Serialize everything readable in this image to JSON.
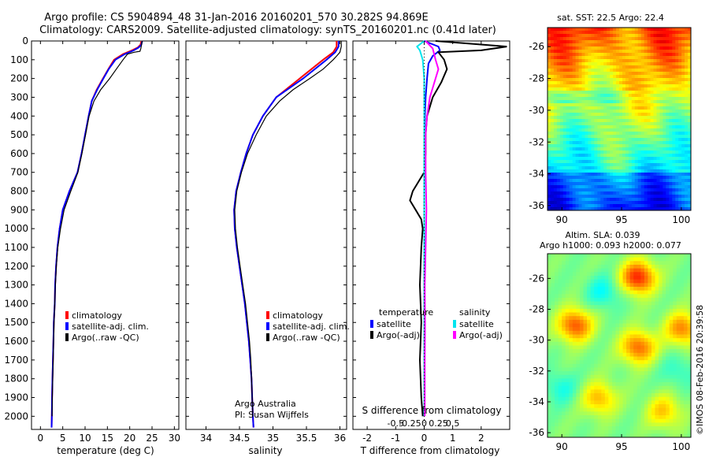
{
  "header": {
    "title_line1": "Argo profile: CS 5904894_48 31-Jan-2016 20160201_570 30.282S 94.869E",
    "title_line2": "Climatology: CARS2009. Satellite-adjusted climatology: synTS_20160201.nc (0.41d later)"
  },
  "colors": {
    "climatology": "#ff0000",
    "satellite": "#0000ff",
    "argo": "#000000",
    "sat_sal": "#00e5ee",
    "argo_sal": "#ff00ff"
  },
  "credits": {
    "org": "Argo Australia",
    "pi": "PI: Susan Wijffels",
    "stamp": "©IMOS 08-Feb-2016 20:39:58"
  },
  "depth_ticks": [
    0,
    100,
    200,
    300,
    400,
    500,
    600,
    700,
    800,
    900,
    1000,
    1100,
    1200,
    1300,
    1400,
    1500,
    1600,
    1700,
    1800,
    1900,
    2000
  ],
  "temp_panel": {
    "xlabel": "temperature (deg C)",
    "xlim": [
      -2,
      31
    ],
    "xticks": [
      0,
      5,
      10,
      15,
      20,
      25,
      30
    ],
    "legend": [
      "climatology",
      "satellite-adj. clim.",
      "Argo(..raw -QC)"
    ]
  },
  "sal_panel": {
    "xlabel": "salinity",
    "xlim": [
      33.7,
      36.1
    ],
    "xticks": [
      34,
      34.5,
      35,
      35.5,
      36
    ],
    "legend": [
      "climatology",
      "satellite-adj. clim.",
      "Argo(..raw -QC)"
    ]
  },
  "diff_panel": {
    "xlabel": "T difference from climatology",
    "xlabel_top": "S difference from climatology",
    "xlim": [
      -2.5,
      3.0
    ],
    "xticks": [
      -2,
      -1,
      0,
      1,
      2
    ],
    "sticks": [
      "-0.5",
      "-0.25",
      "0",
      "0.25",
      "0.5"
    ],
    "legend_t_title": "temperature",
    "legend_s_title": "salinity",
    "legend_t": [
      "satellite",
      "Argo(-adj)"
    ],
    "legend_s": [
      "satellite",
      "Argo(-adj)"
    ]
  },
  "sst_map": {
    "title": "sat. SST: 22.5 Argo: 22.4",
    "xticks": [
      90,
      95,
      100
    ],
    "yticks": [
      -26,
      -28,
      -30,
      -32,
      -34,
      -36
    ],
    "lon": [
      88.8,
      100.8
    ],
    "lat": [
      -24.8,
      -36.3
    ]
  },
  "sla_map": {
    "title1": "Altim. SLA: 0.039",
    "title2": "Argo h1000: 0.093 h2000: 0.077",
    "xticks": [
      90,
      95,
      100
    ],
    "yticks": [
      -26,
      -28,
      -30,
      -32,
      -34,
      -36
    ],
    "lon": [
      88.8,
      100.8
    ],
    "lat": [
      -24.4,
      -36.3
    ]
  },
  "chart_data": [
    {
      "type": "line",
      "ylabel": "",
      "xlabel": "temperature (deg C)",
      "y_inverted": true,
      "ylim": [
        0,
        2070
      ],
      "xlim": [
        -2,
        31
      ],
      "series": [
        {
          "name": "climatology",
          "color": "#ff0000",
          "points": [
            [
              22.6,
              0
            ],
            [
              22.4,
              20
            ],
            [
              21.8,
              35
            ],
            [
              20.5,
              50
            ],
            [
              18.5,
              70
            ],
            [
              16.5,
              100
            ],
            [
              15.2,
              150
            ],
            [
              14.0,
              200
            ],
            [
              12.6,
              260
            ],
            [
              11.5,
              320
            ],
            [
              10.8,
              400
            ],
            [
              10.0,
              500
            ],
            [
              9.2,
              600
            ],
            [
              8.3,
              700
            ],
            [
              6.5,
              800
            ],
            [
              5.0,
              900
            ],
            [
              4.3,
              1000
            ],
            [
              3.8,
              1100
            ],
            [
              3.5,
              1200
            ],
            [
              3.3,
              1300
            ],
            [
              3.2,
              1400
            ],
            [
              3.0,
              1500
            ],
            [
              2.9,
              1600
            ],
            [
              2.8,
              1700
            ],
            [
              2.7,
              1800
            ],
            [
              2.6,
              1900
            ],
            [
              2.55,
              2000
            ],
            [
              2.5,
              2060
            ]
          ]
        },
        {
          "name": "satellite-adj. clim.",
          "color": "#0000ff",
          "points": [
            [
              22.8,
              0
            ],
            [
              22.6,
              20
            ],
            [
              22.0,
              35
            ],
            [
              20.9,
              50
            ],
            [
              18.9,
              70
            ],
            [
              16.8,
              100
            ],
            [
              15.3,
              150
            ],
            [
              14.1,
              200
            ],
            [
              12.7,
              260
            ],
            [
              11.5,
              320
            ],
            [
              10.8,
              400
            ],
            [
              10.0,
              500
            ],
            [
              9.2,
              600
            ],
            [
              8.3,
              700
            ],
            [
              6.5,
              800
            ],
            [
              5.0,
              900
            ],
            [
              4.3,
              1000
            ],
            [
              3.8,
              1100
            ],
            [
              3.5,
              1200
            ],
            [
              3.3,
              1300
            ],
            [
              3.2,
              1400
            ],
            [
              3.0,
              1500
            ],
            [
              2.9,
              1600
            ],
            [
              2.8,
              1700
            ],
            [
              2.7,
              1800
            ],
            [
              2.6,
              1900
            ],
            [
              2.55,
              2000
            ],
            [
              2.5,
              2060
            ]
          ]
        },
        {
          "name": "Argo(..raw -QC)",
          "color": "#000000",
          "points": [
            [
              22.8,
              0
            ],
            [
              22.5,
              40
            ],
            [
              22.3,
              55
            ],
            [
              21.0,
              60
            ],
            [
              19.5,
              70
            ],
            [
              18.5,
              100
            ],
            [
              17.0,
              150
            ],
            [
              15.5,
              200
            ],
            [
              13.5,
              260
            ],
            [
              12.0,
              320
            ],
            [
              10.9,
              400
            ],
            [
              10.1,
              500
            ],
            [
              9.3,
              600
            ],
            [
              8.4,
              700
            ],
            [
              6.8,
              800
            ],
            [
              5.3,
              900
            ],
            [
              4.5,
              1000
            ],
            [
              3.9,
              1100
            ],
            [
              3.55,
              1200
            ],
            [
              3.35,
              1300
            ],
            [
              3.2,
              1400
            ],
            [
              3.05,
              1500
            ],
            [
              2.95,
              1600
            ],
            [
              2.85,
              1700
            ],
            [
              2.75,
              1800
            ],
            [
              2.65,
              1900
            ],
            [
              2.6,
              2000
            ]
          ]
        }
      ]
    },
    {
      "type": "line",
      "xlabel": "salinity",
      "y_inverted": true,
      "ylim": [
        0,
        2070
      ],
      "xlim": [
        33.7,
        36.1
      ],
      "series": [
        {
          "name": "climatology",
          "color": "#ff0000",
          "points": [
            [
              35.95,
              0
            ],
            [
              35.95,
              30
            ],
            [
              35.9,
              60
            ],
            [
              35.75,
              100
            ],
            [
              35.4,
              200
            ],
            [
              35.05,
              300
            ],
            [
              34.85,
              400
            ],
            [
              34.7,
              500
            ],
            [
              34.6,
              600
            ],
            [
              34.52,
              700
            ],
            [
              34.45,
              800
            ],
            [
              34.42,
              900
            ],
            [
              34.43,
              1000
            ],
            [
              34.46,
              1100
            ],
            [
              34.5,
              1200
            ],
            [
              34.54,
              1300
            ],
            [
              34.58,
              1400
            ],
            [
              34.61,
              1500
            ],
            [
              34.64,
              1600
            ],
            [
              34.66,
              1700
            ],
            [
              34.68,
              1800
            ],
            [
              34.69,
              1900
            ],
            [
              34.7,
              2000
            ],
            [
              34.71,
              2060
            ]
          ]
        },
        {
          "name": "satellite-adj. clim.",
          "color": "#0000ff",
          "points": [
            [
              35.98,
              0
            ],
            [
              35.98,
              30
            ],
            [
              35.93,
              60
            ],
            [
              35.8,
              100
            ],
            [
              35.45,
              200
            ],
            [
              35.05,
              300
            ],
            [
              34.85,
              400
            ],
            [
              34.7,
              500
            ],
            [
              34.6,
              600
            ],
            [
              34.52,
              700
            ],
            [
              34.45,
              800
            ],
            [
              34.42,
              900
            ],
            [
              34.43,
              1000
            ],
            [
              34.46,
              1100
            ],
            [
              34.5,
              1200
            ],
            [
              34.54,
              1300
            ],
            [
              34.58,
              1400
            ],
            [
              34.61,
              1500
            ],
            [
              34.64,
              1600
            ],
            [
              34.66,
              1700
            ],
            [
              34.68,
              1800
            ],
            [
              34.69,
              1900
            ],
            [
              34.7,
              2000
            ],
            [
              34.71,
              2060
            ]
          ]
        },
        {
          "name": "Argo(..raw -QC)",
          "color": "#000000",
          "points": [
            [
              36.02,
              0
            ],
            [
              36.02,
              30
            ],
            [
              36.0,
              60
            ],
            [
              35.95,
              80
            ],
            [
              35.9,
              100
            ],
            [
              35.75,
              150
            ],
            [
              35.55,
              200
            ],
            [
              35.3,
              260
            ],
            [
              35.1,
              320
            ],
            [
              34.9,
              400
            ],
            [
              34.75,
              500
            ],
            [
              34.62,
              600
            ],
            [
              34.53,
              700
            ],
            [
              34.46,
              800
            ],
            [
              34.43,
              900
            ],
            [
              34.44,
              1000
            ],
            [
              34.47,
              1100
            ],
            [
              34.51,
              1200
            ],
            [
              34.55,
              1300
            ],
            [
              34.59,
              1400
            ],
            [
              34.62,
              1500
            ],
            [
              34.65,
              1600
            ],
            [
              34.67,
              1700
            ],
            [
              34.68,
              1800
            ],
            [
              34.69,
              1900
            ],
            [
              34.7,
              2000
            ]
          ]
        }
      ]
    },
    {
      "type": "line",
      "xlabel": "T difference from climatology",
      "y_inverted": true,
      "ylim": [
        0,
        2070
      ],
      "xlim": [
        -2.5,
        3.0
      ],
      "series": [
        {
          "name": "temperature satellite",
          "color": "#0000ff",
          "points": [
            [
              0.0,
              0
            ],
            [
              0.5,
              30
            ],
            [
              0.55,
              50
            ],
            [
              0.3,
              80
            ],
            [
              0.15,
              120
            ],
            [
              0.1,
              200
            ],
            [
              0.05,
              300
            ],
            [
              0.0,
              500
            ],
            [
              0.0,
              2000
            ]
          ]
        },
        {
          "name": "temperature Argo(-adj)",
          "color": "#000000",
          "points": [
            [
              0.4,
              0
            ],
            [
              2.9,
              30
            ],
            [
              2.0,
              50
            ],
            [
              0.5,
              60
            ],
            [
              0.7,
              100
            ],
            [
              0.8,
              150
            ],
            [
              0.6,
              220
            ],
            [
              0.3,
              300
            ],
            [
              0.1,
              400
            ],
            [
              0.05,
              500
            ],
            [
              0.05,
              600
            ],
            [
              0.0,
              700
            ],
            [
              -0.4,
              800
            ],
            [
              -0.5,
              850
            ],
            [
              -0.3,
              900
            ],
            [
              -0.1,
              950
            ],
            [
              -0.05,
              1000
            ],
            [
              -0.1,
              1100
            ],
            [
              -0.15,
              1300
            ],
            [
              -0.1,
              1500
            ],
            [
              -0.15,
              1700
            ],
            [
              -0.1,
              1900
            ],
            [
              -0.05,
              2000
            ]
          ]
        },
        {
          "name": "salinity satellite",
          "color": "#00e5ee",
          "points": [
            [
              0.0,
              0
            ],
            [
              -0.25,
              30
            ],
            [
              -0.15,
              50
            ],
            [
              -0.05,
              100
            ],
            [
              0.0,
              200
            ],
            [
              0.0,
              2000
            ]
          ]
        },
        {
          "name": "salinity Argo(-adj)",
          "color": "#ff00ff",
          "points": [
            [
              0.05,
              0
            ],
            [
              0.3,
              40
            ],
            [
              0.4,
              100
            ],
            [
              0.5,
              150
            ],
            [
              0.4,
              200
            ],
            [
              0.3,
              250
            ],
            [
              0.2,
              300
            ],
            [
              0.1,
              400
            ],
            [
              0.05,
              500
            ],
            [
              0.05,
              700
            ],
            [
              0.08,
              900
            ],
            [
              0.05,
              1100
            ],
            [
              0.02,
              1300
            ],
            [
              0.03,
              1500
            ],
            [
              0.02,
              1700
            ],
            [
              0.02,
              1900
            ],
            [
              0.02,
              2000
            ]
          ]
        }
      ]
    },
    {
      "type": "heatmap",
      "title": "sat. SST: 22.5 Argo: 22.4",
      "x_ticks": [
        90,
        95,
        100
      ],
      "y_ticks": [
        -26,
        -28,
        -30,
        -32,
        -34,
        -36
      ]
    },
    {
      "type": "heatmap",
      "title": "Altim. SLA: 0.039",
      "subtitle": "Argo h1000: 0.093 h2000: 0.077",
      "x_ticks": [
        90,
        95,
        100
      ],
      "y_ticks": [
        -26,
        -28,
        -30,
        -32,
        -34,
        -36
      ]
    }
  ]
}
